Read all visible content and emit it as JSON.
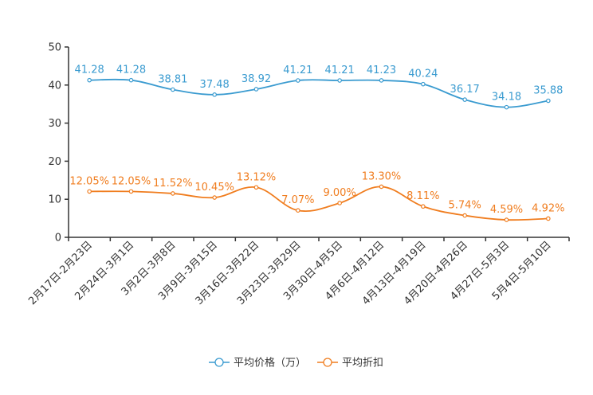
{
  "chart_data": {
    "type": "line",
    "categories": [
      "2月17日-2月23日",
      "2月24日-3月1日",
      "3月2日-3月8日",
      "3月9日-3月15日",
      "3月16日-3月22日",
      "3月23日-3月29日",
      "3月30日-4月5日",
      "4月6日-4月12日",
      "4月13日-4月19日",
      "4月20日-4月26日",
      "4月27日-5月3日",
      "5月4日-5月10日"
    ],
    "ylim": [
      0,
      50
    ],
    "yticks": [
      0,
      10,
      20,
      30,
      40,
      50
    ],
    "series": [
      {
        "name": "平均价格（万）",
        "color": "#3a9bd0",
        "values": [
          41.28,
          41.28,
          38.81,
          37.48,
          38.92,
          41.21,
          41.21,
          41.23,
          40.24,
          36.17,
          34.18,
          35.88
        ],
        "labels": [
          "41.28",
          "41.28",
          "38.81",
          "37.48",
          "38.92",
          "41.21",
          "41.21",
          "41.23",
          "40.24",
          "36.17",
          "34.18",
          "35.88"
        ]
      },
      {
        "name": "平均折扣",
        "color": "#f07d1f",
        "values": [
          12.05,
          12.05,
          11.52,
          10.45,
          13.12,
          7.07,
          9.0,
          13.3,
          8.11,
          5.74,
          4.59,
          4.92
        ],
        "labels": [
          "12.05%",
          "12.05%",
          "11.52%",
          "10.45%",
          "13.12%",
          "7.07%",
          "9.00%",
          "13.30%",
          "8.11%",
          "5.74%",
          "4.59%",
          "4.92%"
        ]
      }
    ],
    "legend_position": "bottom-center"
  }
}
